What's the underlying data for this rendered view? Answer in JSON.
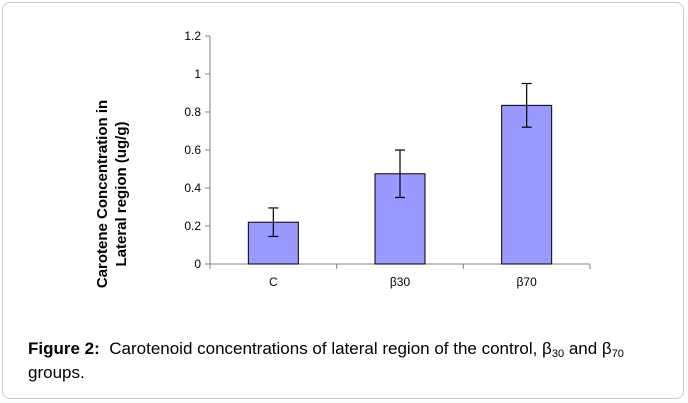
{
  "chart_data": {
    "type": "bar",
    "categories": [
      "C",
      "β30",
      "β70"
    ],
    "values": [
      0.22,
      0.475,
      0.835
    ],
    "error": [
      0.075,
      0.125,
      0.115
    ],
    "ylabel_line1": "Carotene Concentration in",
    "ylabel_line2": "Lateral region (ug/g)",
    "ylim": [
      0,
      1.2
    ],
    "yticks": [
      "0",
      "0.2",
      "0.4",
      "0.6",
      "0.8",
      "1",
      "1.2"
    ],
    "grid": false,
    "colors": {
      "bar_fill": "#9999ff",
      "bar_stroke": "#000000",
      "axis": "#808080",
      "error_bar": "#000000"
    }
  },
  "caption": {
    "label": "Figure 2:",
    "text_part1": "Carotenoid concentrations of lateral region of the control, β",
    "sub1": "30",
    "text_part2": " and β",
    "sub2": "70",
    "text_part3": " groups."
  }
}
